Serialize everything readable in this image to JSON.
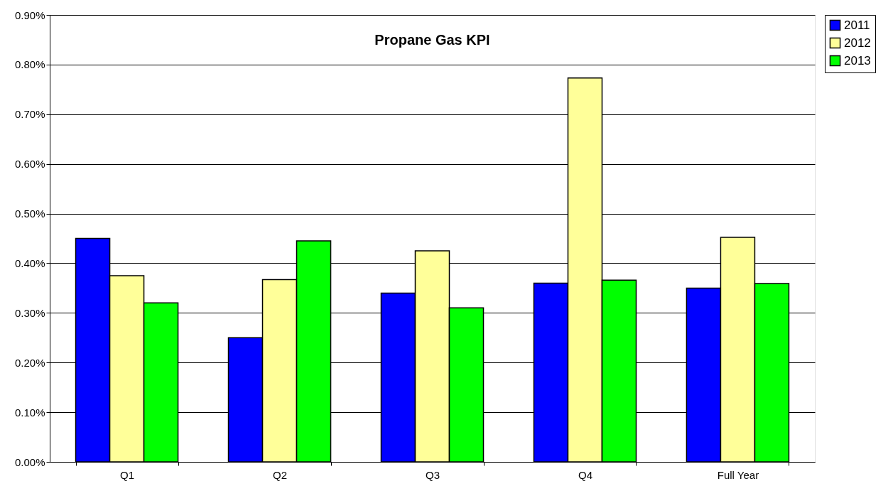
{
  "chart_data": {
    "type": "bar",
    "title": "Propane Gas KPI",
    "categories": [
      "Q1",
      "Q2",
      "Q3",
      "Q4",
      "Full Year"
    ],
    "series": [
      {
        "name": "2011",
        "color": "#0000ff",
        "values": [
          0.45,
          0.25,
          0.34,
          0.36,
          0.35
        ]
      },
      {
        "name": "2012",
        "color": "#ffff99",
        "values": [
          0.375,
          0.367,
          0.425,
          0.773,
          0.452
        ]
      },
      {
        "name": "2013",
        "color": "#00ff00",
        "values": [
          0.32,
          0.445,
          0.31,
          0.366,
          0.359
        ]
      }
    ],
    "ylim": [
      0,
      0.9
    ],
    "yticks": [
      {
        "value": 0,
        "label": "0.00%"
      },
      {
        "value": 0.1,
        "label": "0.10%"
      },
      {
        "value": 0.2,
        "label": "0.20%"
      },
      {
        "value": 0.3,
        "label": "0.30%"
      },
      {
        "value": 0.4,
        "label": "0.40%"
      },
      {
        "value": 0.5,
        "label": "0.50%"
      },
      {
        "value": 0.6,
        "label": "0.60%"
      },
      {
        "value": 0.7,
        "label": "0.70%"
      },
      {
        "value": 0.8,
        "label": "0.80%"
      },
      {
        "value": 0.9,
        "label": "0.90%"
      }
    ],
    "grid": "y",
    "legend": "right"
  }
}
